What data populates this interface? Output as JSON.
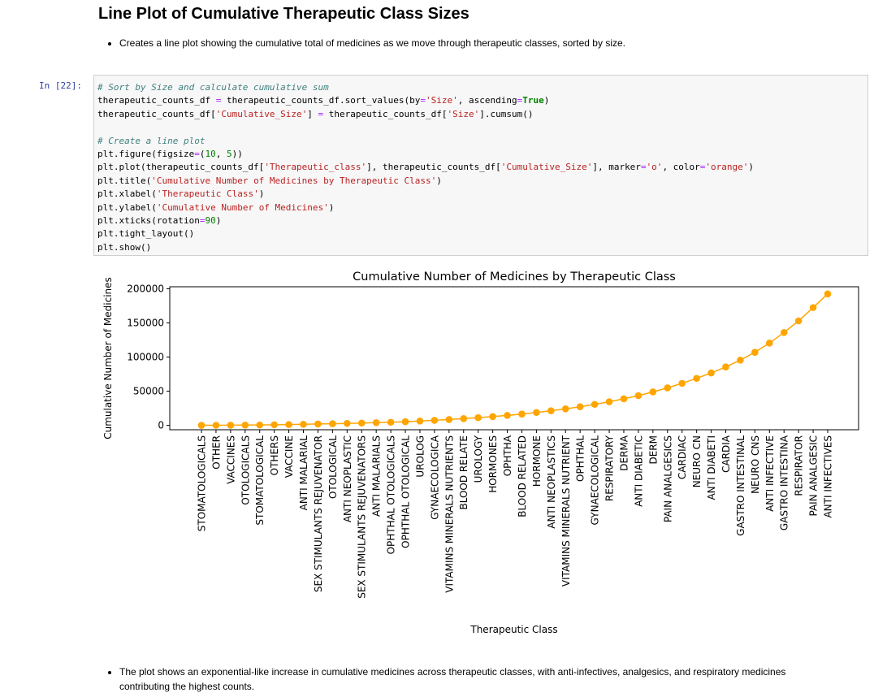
{
  "heading": "Line Plot of Cumulative Therapeutic Class Sizes",
  "bullet_top": "Creates a line plot showing the cumulative total of medicines as we move through therapeutic classes, sorted by size.",
  "prompt": "In [22]:",
  "code_lines": [
    [
      [
        "cm",
        "# Sort by Size and calculate cumulative sum"
      ]
    ],
    [
      [
        "",
        "therapeutic_counts_df "
      ],
      [
        "op",
        "="
      ],
      [
        "",
        " therapeutic_counts_df.sort_values(by"
      ],
      [
        "op",
        "="
      ],
      [
        "st",
        "'Size'"
      ],
      [
        "",
        ", ascending"
      ],
      [
        "op",
        "="
      ],
      [
        "kw",
        "True"
      ],
      [
        "",
        ")"
      ]
    ],
    [
      [
        "",
        "therapeutic_counts_df["
      ],
      [
        "st",
        "'Cumulative_Size'"
      ],
      [
        "",
        "] "
      ],
      [
        "op",
        "="
      ],
      [
        "",
        " therapeutic_counts_df["
      ],
      [
        "st",
        "'Size'"
      ],
      [
        "",
        "].cumsum()"
      ]
    ],
    [],
    [
      [
        "cm",
        "# Create a line plot"
      ]
    ],
    [
      [
        "",
        "plt.figure(figsize"
      ],
      [
        "op",
        "="
      ],
      [
        "",
        "("
      ],
      [
        "nu",
        "10"
      ],
      [
        "",
        ", "
      ],
      [
        "nu",
        "5"
      ],
      [
        "",
        "))"
      ]
    ],
    [
      [
        "",
        "plt.plot(therapeutic_counts_df["
      ],
      [
        "st",
        "'Therapeutic_class'"
      ],
      [
        "",
        "], therapeutic_counts_df["
      ],
      [
        "st",
        "'Cumulative_Size'"
      ],
      [
        "",
        "], marker"
      ],
      [
        "op",
        "="
      ],
      [
        "st",
        "'o'"
      ],
      [
        "",
        ", color"
      ],
      [
        "op",
        "="
      ],
      [
        "st",
        "'orange'"
      ],
      [
        "",
        ")"
      ]
    ],
    [
      [
        "",
        "plt.title("
      ],
      [
        "st",
        "'Cumulative Number of Medicines by Therapeutic Class'"
      ],
      [
        "",
        ")"
      ]
    ],
    [
      [
        "",
        "plt.xlabel("
      ],
      [
        "st",
        "'Therapeutic Class'"
      ],
      [
        "",
        ")"
      ]
    ],
    [
      [
        "",
        "plt.ylabel("
      ],
      [
        "st",
        "'Cumulative Number of Medicines'"
      ],
      [
        "",
        ")"
      ]
    ],
    [
      [
        "",
        "plt.xticks(rotation"
      ],
      [
        "op",
        "="
      ],
      [
        "nu",
        "90"
      ],
      [
        "",
        ")"
      ]
    ],
    [
      [
        "",
        "plt.tight_layout()"
      ]
    ],
    [
      [
        "",
        "plt.show()"
      ]
    ]
  ],
  "chart_data": {
    "type": "line",
    "title": "Cumulative Number of Medicines by Therapeutic Class",
    "xlabel": "Therapeutic Class",
    "ylabel": "Cumulative Number of Medicines",
    "color": "#ffa500",
    "marker": "o",
    "ylim": [
      -6500,
      203000
    ],
    "yticks": [
      0,
      50000,
      100000,
      150000,
      200000
    ],
    "categories": [
      "STOMATOLOGICALS",
      "OTHER",
      "VACCINES",
      "OTOLOGICALS",
      "STOMATOLOGICAL",
      "OTHERS",
      "VACCINE",
      "ANTI MALARIAL",
      "SEX STIMULANTS REJUVENATOR",
      "OTOLOGICAL",
      "ANTI NEOPLASTIC",
      "SEX STIMULANTS REJUVENATORS",
      "ANTI MALARIALS",
      "OPHTHAL OTOLOGICALS",
      "OPHTHAL OTOLOGICAL",
      "UROLOG",
      "GYNAECOLOGICA",
      "VITAMINS MINERALS NUTRIENTS",
      "BLOOD RELATE",
      "UROLOGY",
      "HORMONES",
      "OPHTHA",
      "BLOOD RELATED",
      "HORMONE",
      "ANTI NEOPLASTICS",
      "VITAMINS MINERALS NUTRIENT",
      "OPHTHAL",
      "GYNAECOLOGICAL",
      "RESPIRATORY",
      "DERMA",
      "ANTI DIABETIC",
      "DERM",
      "PAIN ANALGESICS",
      "CARDIAC",
      "NEURO CN",
      "ANTI DIABETI",
      "CARDIA",
      "GASTRO INTESTINAL",
      "NEURO CNS",
      "ANTI INFECTIVE",
      "GASTRO INTESTINA",
      "RESPIRATOR",
      "PAIN ANALGESIC",
      "ANTI INFECTIVES"
    ],
    "values": [
      5,
      50,
      150,
      300,
      500,
      800,
      1100,
      1500,
      1900,
      2300,
      2800,
      3300,
      3900,
      4500,
      5300,
      6200,
      7300,
      8500,
      9800,
      11200,
      12800,
      14500,
      16500,
      18800,
      21300,
      24100,
      27200,
      30700,
      34500,
      38800,
      43500,
      48900,
      54900,
      61500,
      68800,
      76700,
      85500,
      95500,
      107000,
      120500,
      136000,
      153000,
      172500,
      192500
    ]
  },
  "bullet_bottom": "The plot shows an exponential-like increase in cumulative medicines across therapeutic classes, with anti-infectives, analgesics, and respiratory medicines contributing the highest counts."
}
